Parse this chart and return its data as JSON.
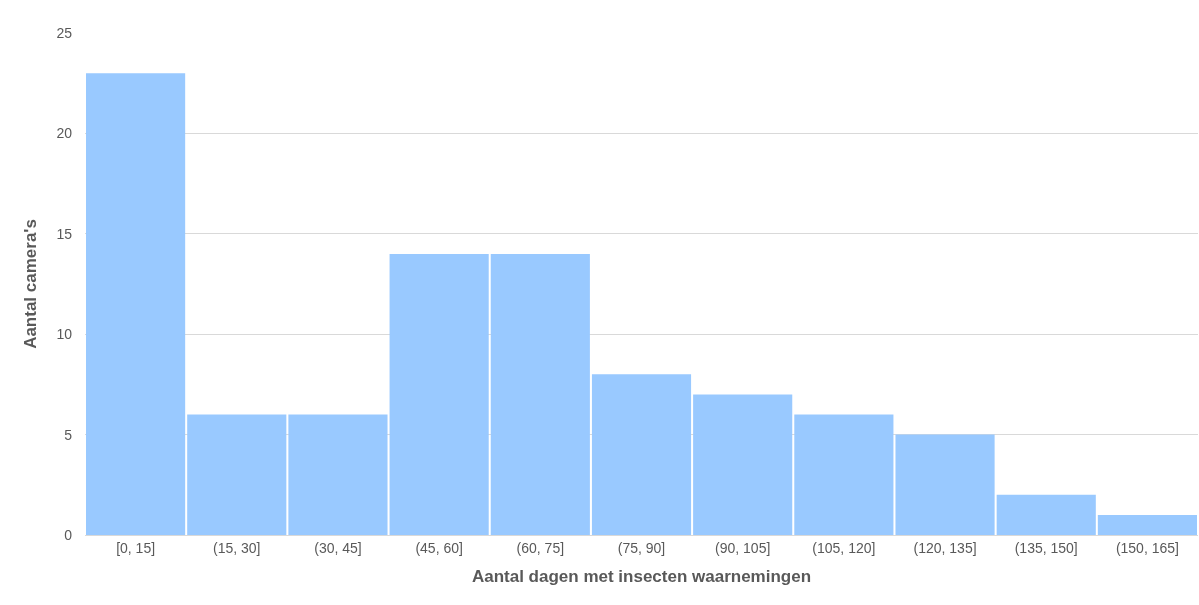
{
  "chart_data": {
    "type": "bar",
    "xlabel": "Aantal dagen met insecten waarnemingen",
    "ylabel": "Aantal camera's",
    "categories": [
      "[0, 15]",
      "(15, 30]",
      "(30, 45]",
      "(45, 60]",
      "(60, 75]",
      "(75, 90]",
      "(90, 105]",
      "(105, 120]",
      "(120, 135]",
      "(135, 150]",
      "(150, 165]"
    ],
    "values": [
      23,
      6,
      6,
      14,
      14,
      8,
      7,
      6,
      5,
      2,
      1
    ],
    "color": "#99c9ff",
    "ylim": [
      0,
      25
    ],
    "yticks": [
      0,
      5,
      10,
      15,
      20,
      25
    ],
    "grid": "y"
  }
}
